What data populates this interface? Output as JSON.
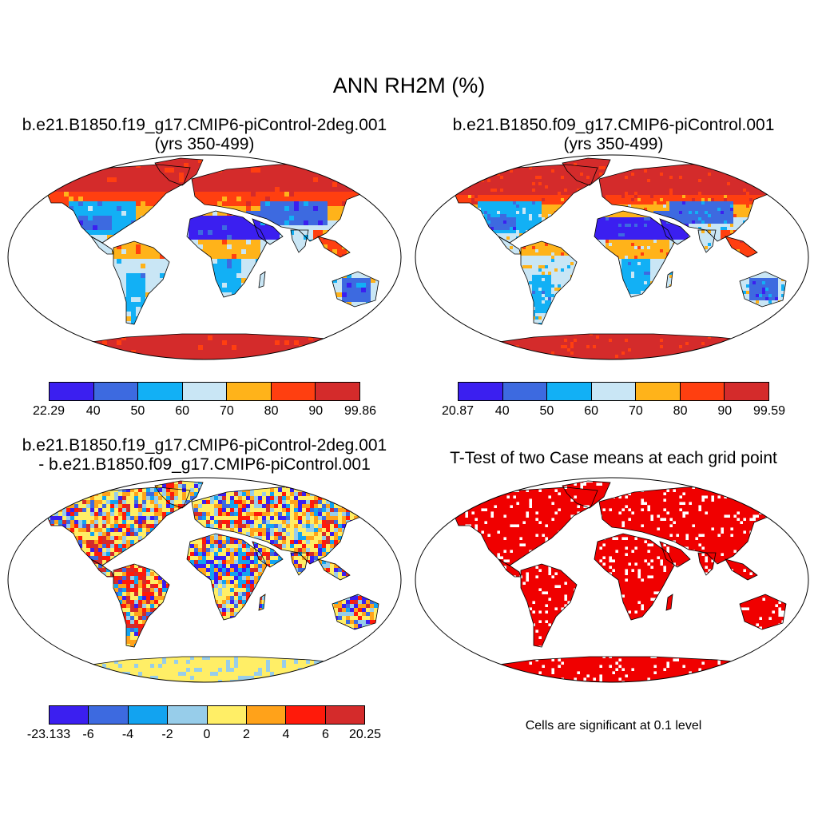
{
  "title": "ANN RH2M (%)",
  "panels": {
    "top_left": {
      "title_line1": "b.e21.B1850.f19_g17.CMIP6-piControl-2deg.001",
      "title_line2": "(yrs 350-499)",
      "colorbar": {
        "colors": [
          "#3b1ff0",
          "#3d6ae0",
          "#12b0f5",
          "#c9e6f5",
          "#ffb31a",
          "#ff3f10",
          "#d42b2b"
        ],
        "labels": [
          "22.29",
          "40",
          "50",
          "60",
          "70",
          "80",
          "90",
          "99.86"
        ]
      }
    },
    "top_right": {
      "title_line1": "b.e21.B1850.f09_g17.CMIP6-piControl.001",
      "title_line2": "(yrs 350-499)",
      "colorbar": {
        "colors": [
          "#3b1ff0",
          "#3d6ae0",
          "#12b0f5",
          "#c9e6f5",
          "#ffb31a",
          "#ff3f10",
          "#d42b2b"
        ],
        "labels": [
          "20.87",
          "40",
          "50",
          "60",
          "70",
          "80",
          "90",
          "99.59"
        ]
      }
    },
    "bottom_left": {
      "title_line1": "b.e21.B1850.f19_g17.CMIP6-piControl-2deg.001",
      "title_line2": "- b.e21.B1850.f09_g17.CMIP6-piControl.001",
      "colorbar": {
        "colors": [
          "#3b1ff0",
          "#3d6ae0",
          "#12a3f0",
          "#97cdea",
          "#ffee66",
          "#ffa21a",
          "#ff1a0a",
          "#d42b2b"
        ],
        "labels": [
          "-23.133",
          "-6",
          "-4",
          "-2",
          "0",
          "2",
          "4",
          "6",
          "20.25"
        ]
      }
    },
    "bottom_right": {
      "title_line1": "T-Test of two Case means at each grid point",
      "caption": "Cells are significant at 0.1 level",
      "color": "#f00000"
    }
  }
}
